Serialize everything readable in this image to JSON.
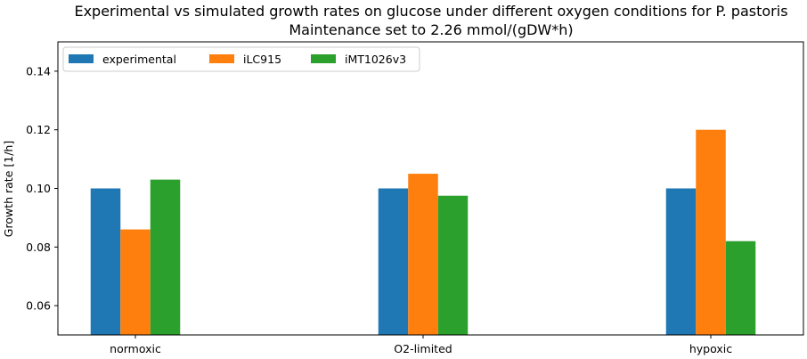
{
  "chart_data": {
    "type": "bar",
    "title": "Experimental vs simulated growth rates on glucose under different oxygen conditions for P. pastoris",
    "subtitle": "Maintenance set to 2.26 mmol/(gDW*h)",
    "xlabel": "",
    "ylabel": "Growth rate [1/h]",
    "categories": [
      "normoxic",
      "O2-limited",
      "hypoxic"
    ],
    "series": [
      {
        "name": "experimental",
        "color": "#1f77b4",
        "values": [
          0.1,
          0.1,
          0.1
        ]
      },
      {
        "name": "iLC915",
        "color": "#ff7f0e",
        "values": [
          0.086,
          0.105,
          0.12
        ]
      },
      {
        "name": "iMT1026v3",
        "color": "#2ca02c",
        "values": [
          0.103,
          0.0975,
          0.082
        ]
      }
    ],
    "ylim": [
      0.05,
      0.15
    ],
    "yticks": [
      0.06,
      0.08,
      0.1,
      0.12,
      0.14
    ],
    "ytick_labels": [
      "0.06",
      "0.08",
      "0.10",
      "0.12",
      "0.14"
    ],
    "grid": false,
    "legend_position": "top-left"
  }
}
